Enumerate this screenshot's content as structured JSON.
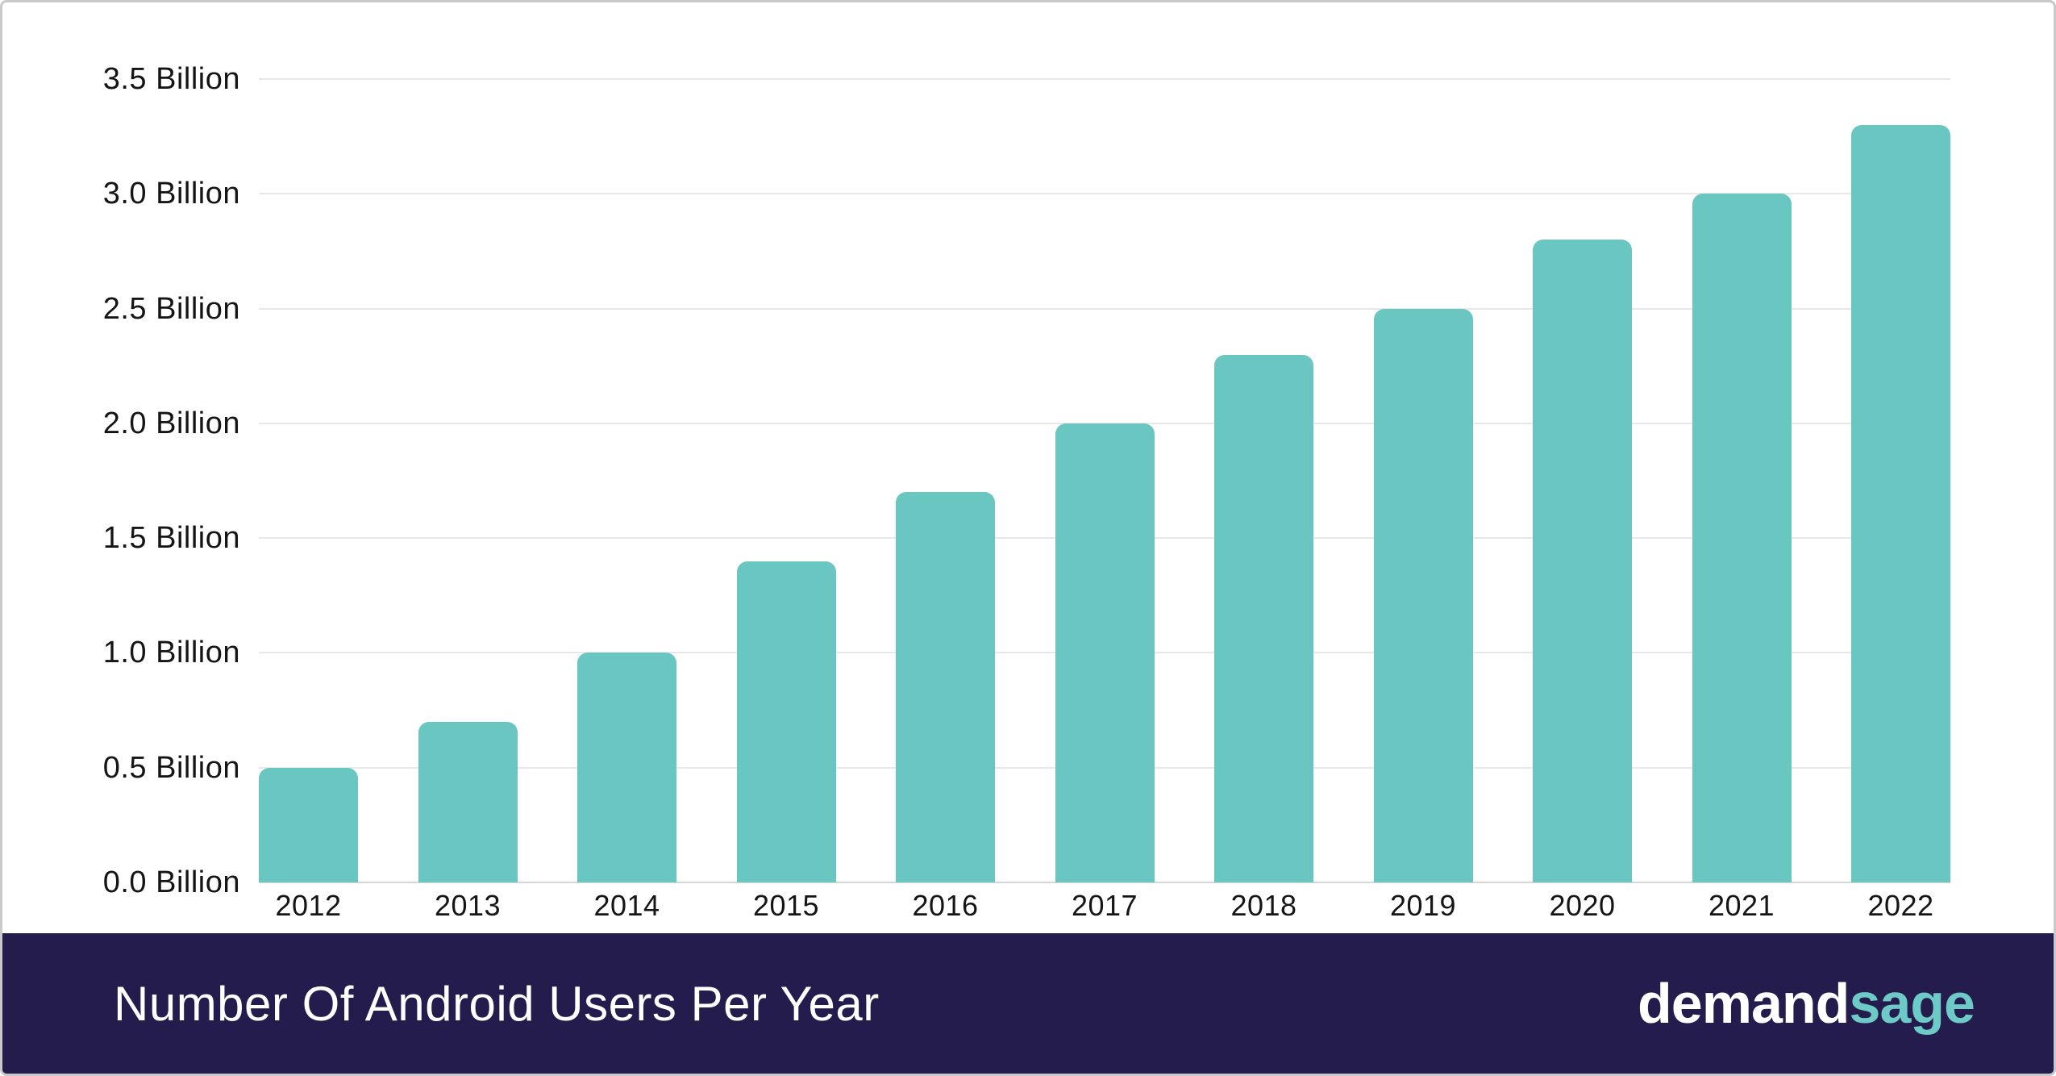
{
  "chart_data": {
    "type": "bar",
    "title": "Number Of Android Users Per Year",
    "categories": [
      "2012",
      "2013",
      "2014",
      "2015",
      "2016",
      "2017",
      "2018",
      "2019",
      "2020",
      "2021",
      "2022"
    ],
    "values": [
      0.5,
      0.7,
      1.0,
      1.4,
      1.7,
      2.0,
      2.3,
      2.5,
      2.8,
      3.0,
      3.3
    ],
    "unit": "Billion",
    "xlabel": "",
    "ylabel": "",
    "ylim": [
      0,
      3.5
    ],
    "ytick_step": 0.5,
    "y_tick_labels": [
      "3.5 Billion",
      "3.0 Billion",
      "2.5 Billion",
      "2.0 Billion",
      "1.5 Billion",
      "1.0 Billion",
      "0.5 Billion",
      "0.0 Billion"
    ],
    "grid": "horizontal-only",
    "legend_position": "none",
    "bar_color": "#69c6c1"
  },
  "footer": {
    "title": "Number Of Android Users Per Year",
    "brand": {
      "first": "demand",
      "second": "sage"
    }
  },
  "colors": {
    "bar": "#69c6c1",
    "footer_background": "#231c4d",
    "footer_title": "#ffffff",
    "brand_first": "#ffffff",
    "brand_second": "#6ecac6",
    "gridline": "#e8e8e8",
    "axis_baseline": "#d7d7d7",
    "tick_text": "#151515",
    "card_border": "#c9c9c9"
  }
}
